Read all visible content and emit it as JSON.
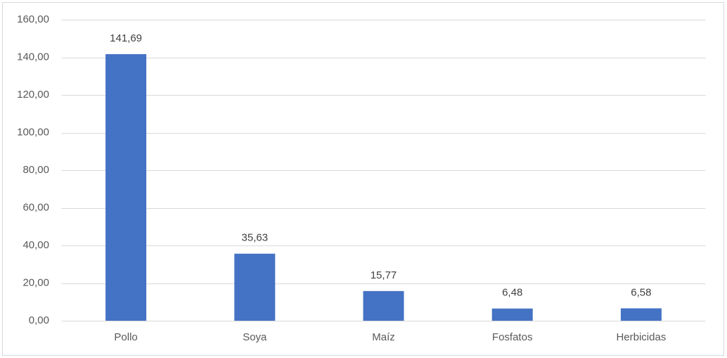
{
  "chart_data": {
    "type": "bar",
    "categories": [
      "Pollo",
      "Soya",
      "Maíz",
      "Fosfatos",
      "Herbicidas"
    ],
    "values": [
      141.69,
      35.63,
      15.77,
      6.48,
      6.58
    ],
    "value_labels": [
      "141,69",
      "35,63",
      "15,77",
      "6,48",
      "6,58"
    ],
    "color": "#4472c4",
    "ylim": [
      0,
      160
    ],
    "yticks": [
      {
        "value": 0,
        "label": "0,00"
      },
      {
        "value": 20,
        "label": "20,00"
      },
      {
        "value": 40,
        "label": "40,00"
      },
      {
        "value": 60,
        "label": "60,00"
      },
      {
        "value": 80,
        "label": "80,00"
      },
      {
        "value": 100,
        "label": "100,00"
      },
      {
        "value": 120,
        "label": "120,00"
      },
      {
        "value": 140,
        "label": "140,00"
      },
      {
        "value": 160,
        "label": "160,00"
      }
    ],
    "grid": true
  }
}
